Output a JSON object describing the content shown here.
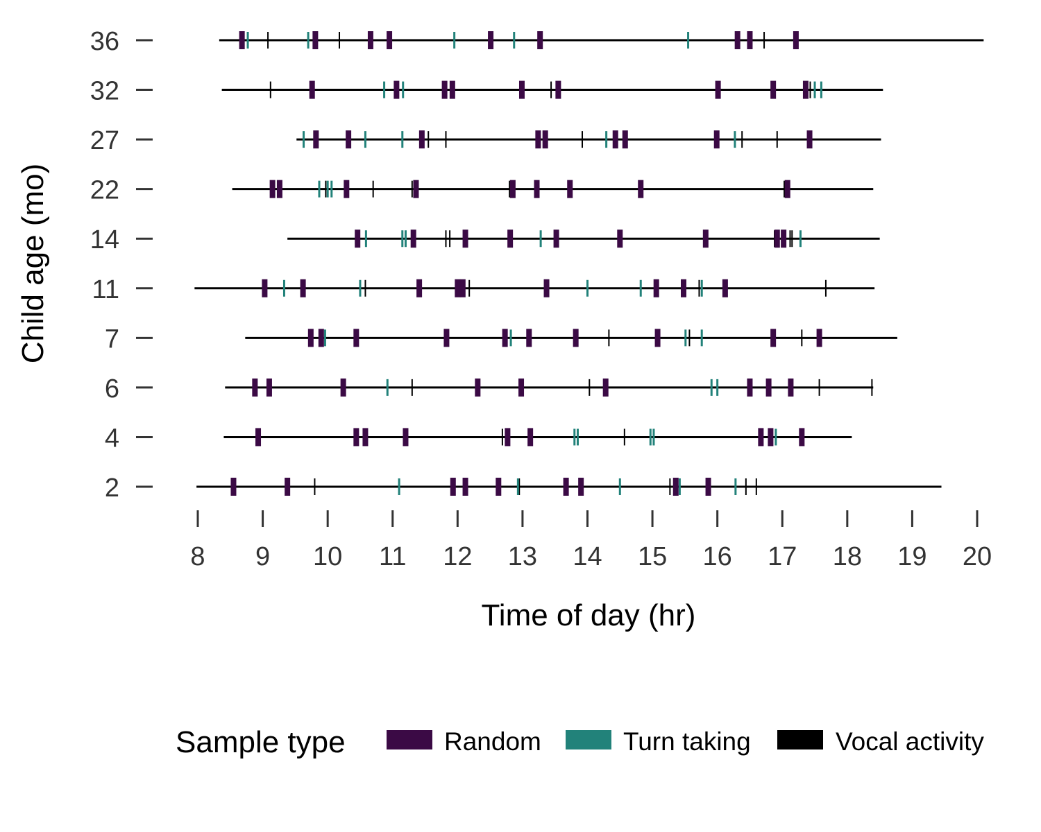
{
  "chart_data": {
    "type": "timeline",
    "xlabel": "Time of day (hr)",
    "ylabel": "Child age (mo)",
    "xlim": [
      8,
      20
    ],
    "x_ticks": [
      "8",
      "9",
      "10",
      "11",
      "12",
      "13",
      "14",
      "15",
      "16",
      "17",
      "18",
      "19",
      "20"
    ],
    "grid": false,
    "legend": {
      "title": "Sample type",
      "position": "bottom",
      "entries": [
        {
          "name": "Random",
          "color": "#3b0a45"
        },
        {
          "name": "Turn taking",
          "color": "#22827a"
        },
        {
          "name": "Vocal activity",
          "color": "#000000"
        }
      ]
    },
    "series_colors": {
      "random": "#3b0a45",
      "turn": "#22827a",
      "vocal": "#000000",
      "baseline": "#000000"
    },
    "rows": [
      {
        "age": "36",
        "start": 8.33,
        "end": 20.1,
        "random": [
          8.68,
          9.81,
          10.66,
          10.95,
          12.51,
          13.27,
          16.31,
          16.5,
          17.21
        ],
        "turn": [
          8.77,
          9.7,
          11.95,
          12.87,
          15.55
        ],
        "vocal": [
          9.08,
          10.18,
          16.72
        ]
      },
      {
        "age": "32",
        "start": 8.37,
        "end": 18.55,
        "random": [
          9.76,
          11.06,
          11.8,
          11.92,
          12.99,
          13.55,
          16.01,
          16.86,
          17.36
        ],
        "turn": [
          10.87,
          11.16,
          17.5,
          17.6
        ],
        "vocal": [
          9.12,
          13.44,
          17.43
        ]
      },
      {
        "age": "27",
        "start": 9.52,
        "end": 18.52,
        "random": [
          9.82,
          10.32,
          11.45,
          13.24,
          13.35,
          14.43,
          14.58,
          15.99,
          17.42
        ],
        "turn": [
          9.63,
          10.58,
          11.15,
          14.29,
          16.27
        ],
        "vocal": [
          11.55,
          11.82,
          13.92,
          16.38,
          16.92
        ]
      },
      {
        "age": "22",
        "start": 8.53,
        "end": 18.4,
        "random": [
          9.15,
          9.26,
          10.29,
          11.36,
          12.85,
          13.22,
          13.73,
          14.82,
          17.08
        ],
        "turn": [
          9.87,
          10.0,
          10.06
        ],
        "vocal": [
          9.97,
          10.7,
          11.3,
          12.8,
          17.03
        ]
      },
      {
        "age": "14",
        "start": 9.38,
        "end": 18.5,
        "random": [
          10.46,
          11.32,
          12.12,
          12.81,
          13.52,
          14.5,
          15.82,
          16.92,
          17.02
        ],
        "turn": [
          10.59,
          11.15,
          11.2,
          13.28,
          17.28
        ],
        "vocal": [
          11.82,
          11.88,
          16.88,
          17.12,
          17.15
        ]
      },
      {
        "age": "11",
        "start": 7.95,
        "end": 18.42,
        "random": [
          9.03,
          9.62,
          11.41,
          12.0,
          12.08,
          13.37,
          15.06,
          15.48,
          16.12
        ],
        "turn": [
          9.33,
          10.5,
          14.0,
          14.82,
          15.76
        ],
        "vocal": [
          10.58,
          12.18,
          15.72,
          17.67
        ]
      },
      {
        "age": "7",
        "start": 8.73,
        "end": 18.77,
        "random": [
          9.74,
          9.9,
          10.44,
          11.83,
          12.73,
          13.1,
          13.82,
          15.08,
          16.86,
          17.57
        ],
        "turn": [
          9.96,
          12.82,
          15.51,
          15.76
        ],
        "vocal": [
          13.08,
          14.33,
          15.57,
          17.3
        ]
      },
      {
        "age": "6",
        "start": 8.42,
        "end": 18.4,
        "random": [
          8.88,
          9.1,
          10.24,
          12.31,
          12.98,
          14.28,
          16.5,
          16.79,
          17.13
        ],
        "turn": [
          10.92,
          15.91,
          16.0
        ],
        "vocal": [
          11.3,
          14.03,
          17.57,
          18.38
        ]
      },
      {
        "age": "4",
        "start": 8.4,
        "end": 18.07,
        "random": [
          8.93,
          10.44,
          10.58,
          11.2,
          12.77,
          13.12,
          16.67,
          16.82,
          17.3
        ],
        "turn": [
          13.8,
          13.85,
          14.97,
          15.02,
          16.9
        ],
        "vocal": [
          12.69,
          14.57
        ]
      },
      {
        "age": "2",
        "start": 7.98,
        "end": 19.45,
        "random": [
          8.55,
          9.38,
          11.93,
          12.12,
          12.63,
          13.67,
          13.9,
          15.36,
          15.86
        ],
        "turn": [
          11.1,
          12.93,
          14.5,
          15.42,
          16.28
        ],
        "vocal": [
          9.8,
          12.95,
          15.27,
          16.44,
          16.6
        ]
      }
    ]
  }
}
